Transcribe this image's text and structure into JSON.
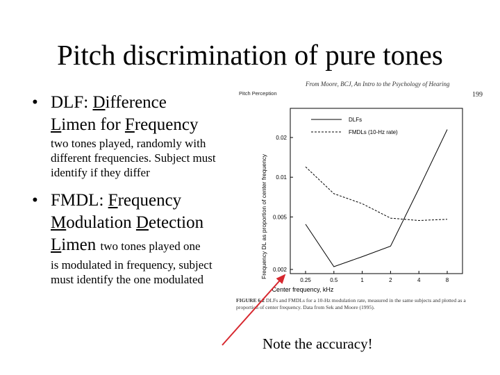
{
  "slide": {
    "title": "Pitch discrimination of pure tones",
    "bullet1": {
      "abbr": "DLF:",
      "w1_first": "D",
      "w1_rest": "ifference",
      "w2_first": "L",
      "w2_rest": "imen for",
      "w3_first": "F",
      "w3_rest": "requency",
      "desc": "two tones played, randomly with different frequencies. Subject must identify if they differ"
    },
    "bullet2": {
      "abbr": "FMDL:",
      "w1_first": "F",
      "w1_rest": "requency",
      "w2_first": "M",
      "w2_rest": "odulation",
      "w3_first": "D",
      "w3_rest": "etection",
      "w4_first": "L",
      "w4_rest": "imen",
      "desc_start": "two tones played one",
      "desc": "is modulated in frequency, subject must identify the one modulated"
    },
    "note": "Note the accuracy!",
    "colors": {
      "arrow": "#d7282f"
    }
  },
  "figure": {
    "source": "From Moore, BCJ, An Intro to the Psychology of Hearing",
    "header_left": "Pitch Perception",
    "page_number": "199",
    "caption_label": "FIGURE 6.2",
    "caption": "DLFs and FMDLs for a 10-Hz modulation rate, measured in the same subjects and plotted as a proportion of center frequency. Data from Sek and Moore (1995)."
  },
  "chart_data": {
    "type": "line",
    "xlabel": "Center frequency, kHz",
    "ylabel": "Frequency DL as proportion of center frequency",
    "x_ticks": [
      "0.25",
      "0.5",
      "1",
      "2",
      "4",
      "8"
    ],
    "y_ticks": [
      "0.002",
      "0.005",
      "0.01",
      "0.02"
    ],
    "x_scale": "log",
    "y_scale": "log",
    "legend_position": "top-right",
    "series": [
      {
        "name": "DLFs",
        "style": "solid",
        "x": [
          0.25,
          0.5,
          1,
          2,
          4,
          8
        ],
        "y": [
          0.0044,
          0.0021,
          0.0025,
          0.003,
          0.0082,
          0.023
        ]
      },
      {
        "name": "FMDLs (10-Hz rate)",
        "style": "dashed",
        "x": [
          0.25,
          0.5,
          1,
          2,
          4,
          8
        ],
        "y": [
          0.012,
          0.0075,
          0.0063,
          0.0049,
          0.0047,
          0.0048
        ]
      }
    ]
  }
}
